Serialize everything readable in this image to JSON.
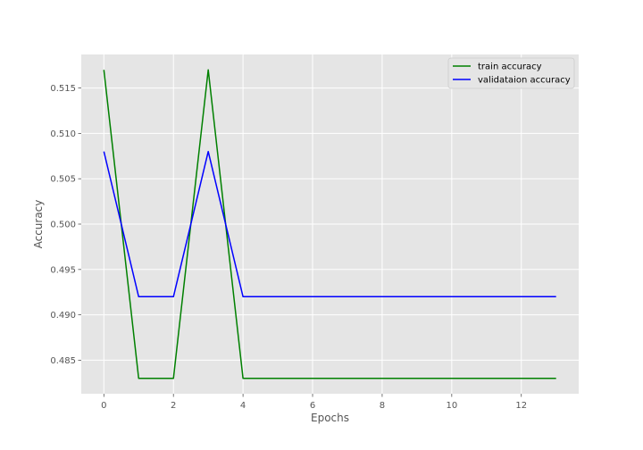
{
  "chart_data": {
    "type": "line",
    "title": "",
    "xlabel": "Epochs",
    "ylabel": "Accuracy",
    "xlim": [
      -0.65,
      13.65
    ],
    "ylim": [
      0.4813,
      0.5187
    ],
    "xticks": [
      0,
      2,
      4,
      6,
      8,
      10,
      12
    ],
    "yticks": [
      0.485,
      0.49,
      0.495,
      0.5,
      0.505,
      0.51,
      0.515
    ],
    "grid": true,
    "legend_position": "top-right",
    "x": [
      0,
      1,
      2,
      3,
      4,
      5,
      6,
      7,
      8,
      9,
      10,
      11,
      12,
      13
    ],
    "series": [
      {
        "name": "train accuracy",
        "color": "#008000",
        "values": [
          0.517,
          0.483,
          0.483,
          0.517,
          0.483,
          0.483,
          0.483,
          0.483,
          0.483,
          0.483,
          0.483,
          0.483,
          0.483,
          0.483
        ]
      },
      {
        "name": "validataion accuracy",
        "color": "#0000ff",
        "values": [
          0.508,
          0.492,
          0.492,
          0.508,
          0.492,
          0.492,
          0.492,
          0.492,
          0.492,
          0.492,
          0.492,
          0.492,
          0.492,
          0.492
        ]
      }
    ],
    "colors": {
      "plot_background": "#e5e5e5",
      "grid": "#ffffff",
      "tick_text": "#555555"
    }
  }
}
